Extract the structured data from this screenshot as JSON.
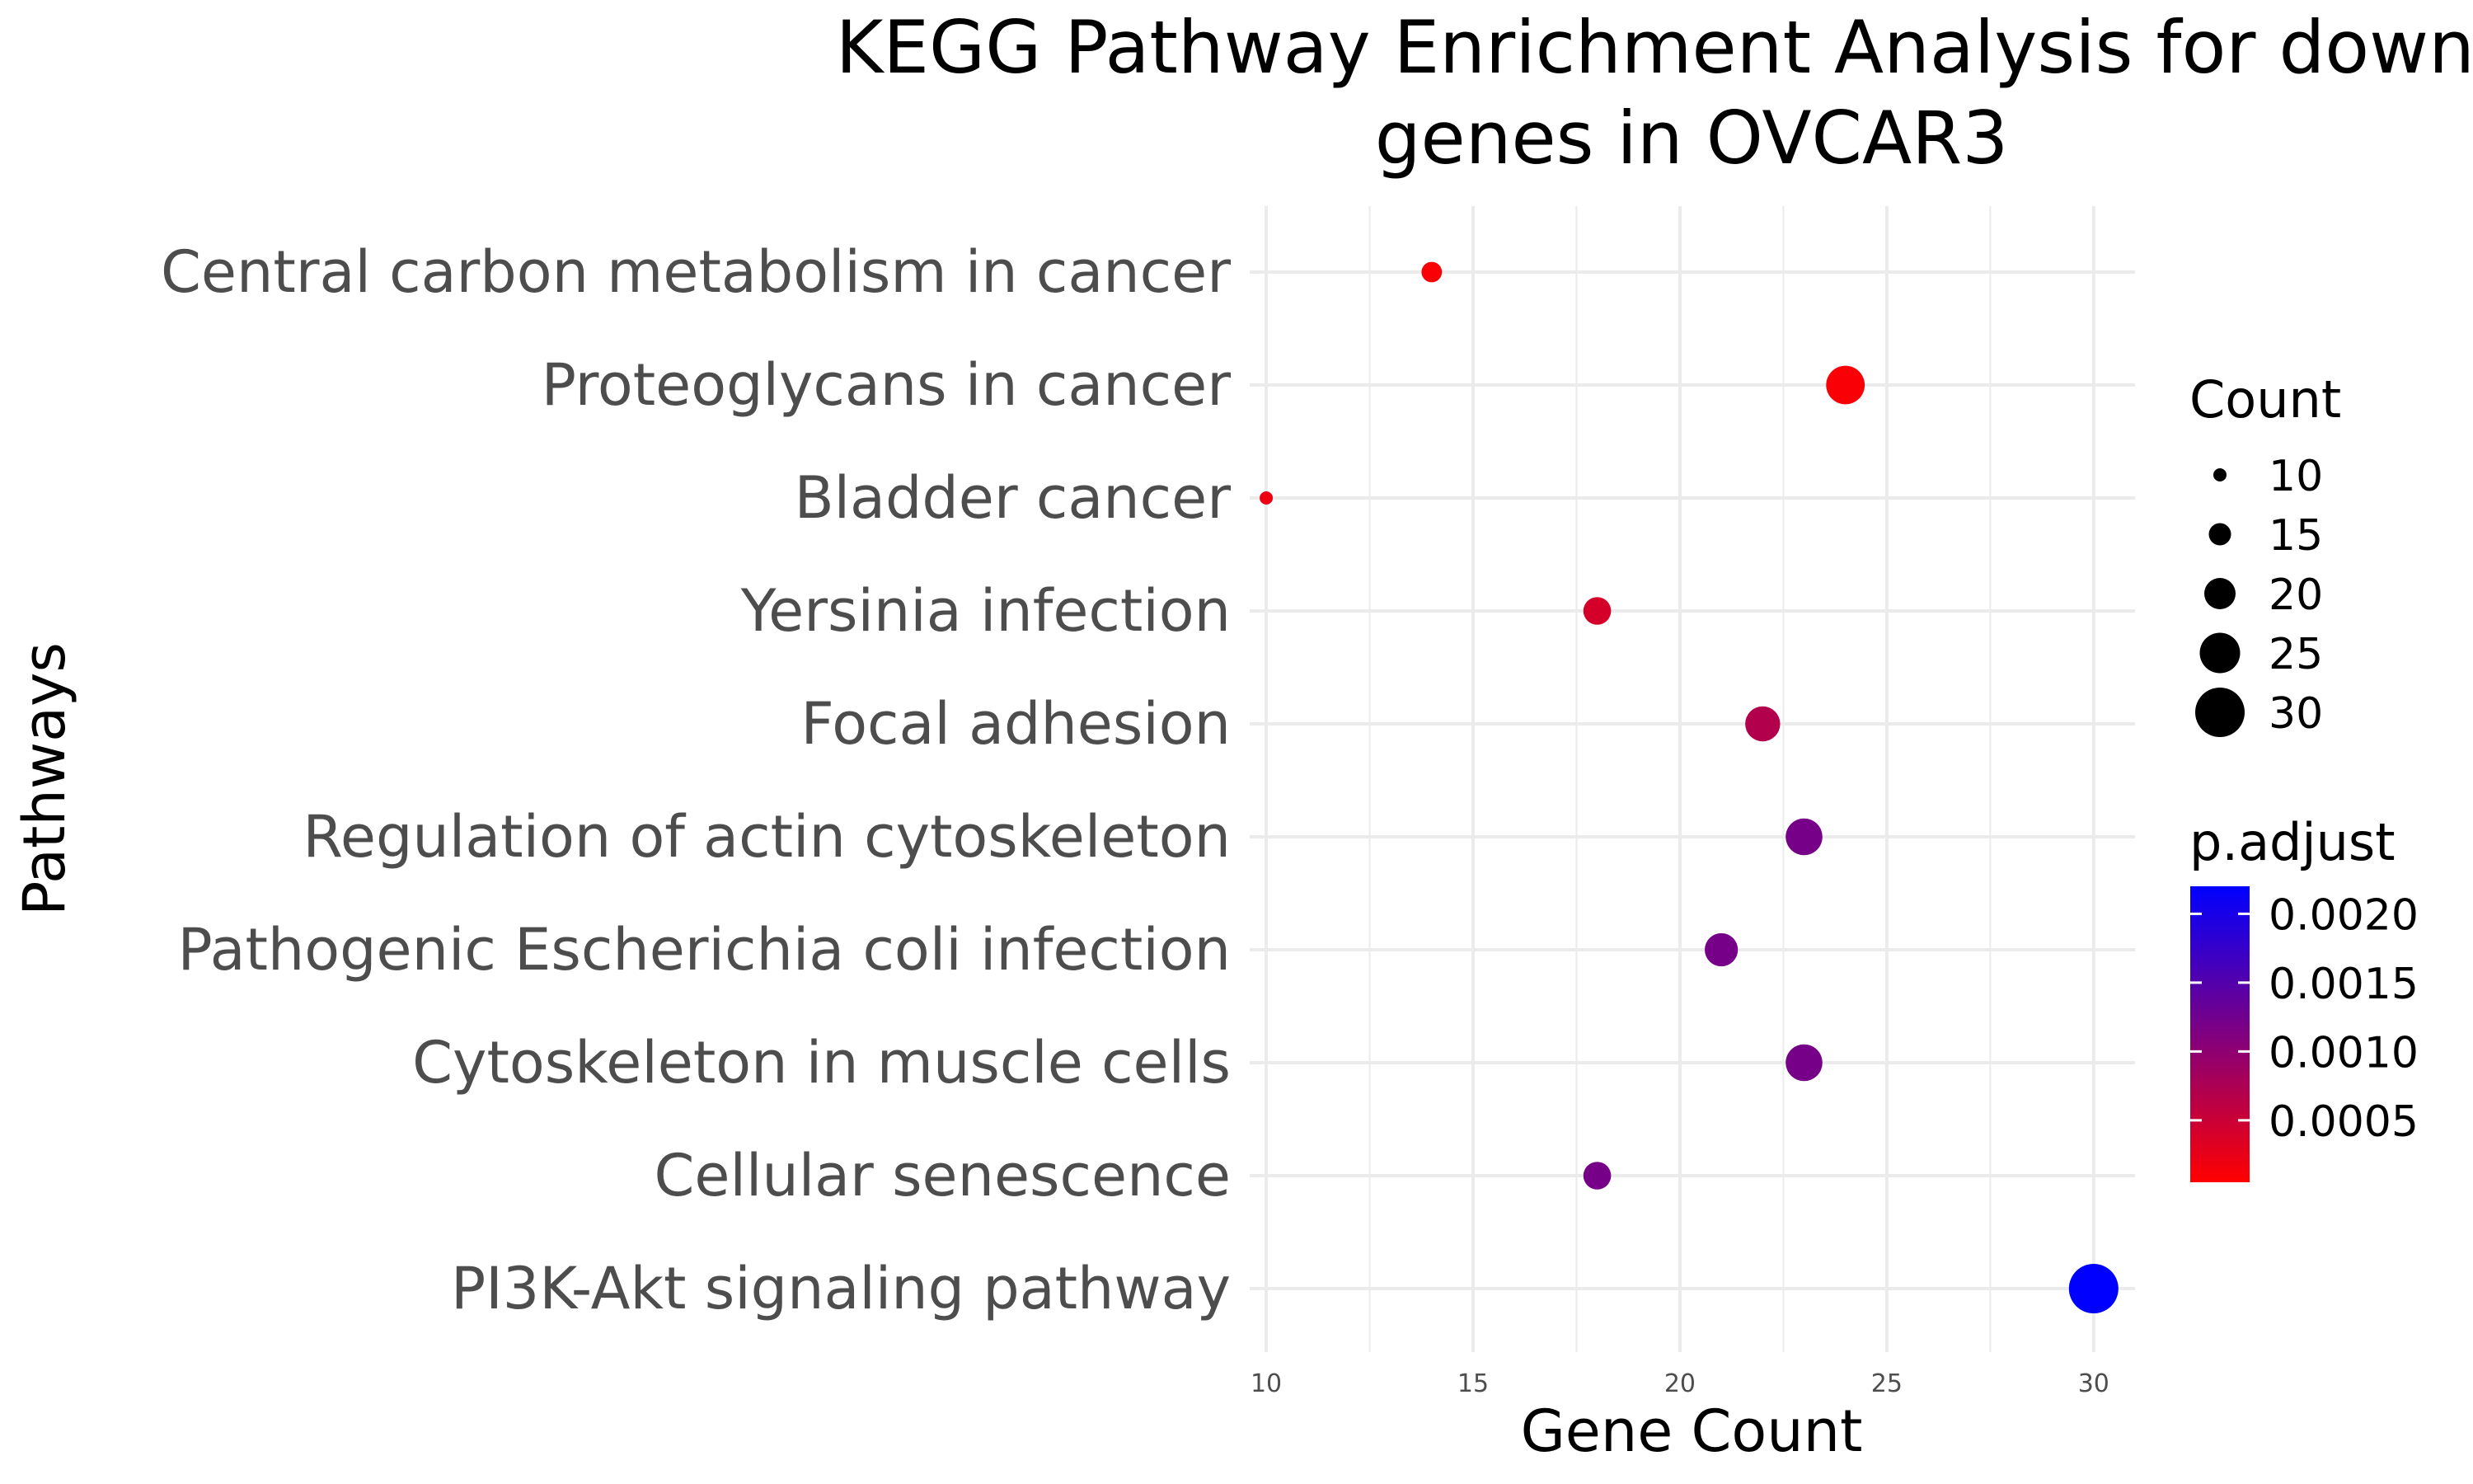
{
  "chart_data": {
    "type": "scatter",
    "title_line1": "KEGG Pathway Enrichment Analysis for downre",
    "title_line2": "genes in OVCAR3",
    "xlabel": "Gene Count",
    "ylabel": "Pathways",
    "xlim": [
      9.6,
      31
    ],
    "x_ticks": [
      10,
      15,
      20,
      25,
      30
    ],
    "grid": true,
    "categories": [
      "Central carbon metabolism in cancer",
      "Proteoglycans in cancer",
      "Bladder cancer",
      "Yersinia infection",
      "Focal adhesion",
      "Regulation of actin cytoskeleton",
      "Pathogenic Escherichia coli infection",
      "Cytoskeleton in muscle cells",
      "Cellular senescence",
      "PI3K-Akt signaling pathway"
    ],
    "points": [
      {
        "pathway": "Central carbon metabolism in cancer",
        "count": 14,
        "p_adjust": 0.0001
      },
      {
        "pathway": "Proteoglycans in cancer",
        "count": 24,
        "p_adjust": 0.0001
      },
      {
        "pathway": "Bladder cancer",
        "count": 10,
        "p_adjust": 0.0002
      },
      {
        "pathway": "Yersinia infection",
        "count": 18,
        "p_adjust": 0.0004
      },
      {
        "pathway": "Focal adhesion",
        "count": 22,
        "p_adjust": 0.0007
      },
      {
        "pathway": "Regulation of actin cytoskeleton",
        "count": 23,
        "p_adjust": 0.0012
      },
      {
        "pathway": "Pathogenic Escherichia coli infection",
        "count": 21,
        "p_adjust": 0.0012
      },
      {
        "pathway": "Cytoskeleton in muscle cells",
        "count": 23,
        "p_adjust": 0.0012
      },
      {
        "pathway": "Cellular senescence",
        "count": 18,
        "p_adjust": 0.0012
      },
      {
        "pathway": "PI3K-Akt signaling pathway",
        "count": 30,
        "p_adjust": 0.0022
      }
    ],
    "size_legend": {
      "title": "Count",
      "values": [
        10,
        15,
        20,
        25,
        30
      ],
      "labels": [
        "10",
        "15",
        "20",
        "25",
        "30"
      ]
    },
    "color_legend": {
      "title": "p.adjust",
      "min": 5e-05,
      "max": 0.0022,
      "low_color": "#ff0000",
      "high_color": "#0000ff",
      "ticks": [
        0.0005,
        0.001,
        0.0015,
        0.002
      ],
      "tick_labels": [
        "0.0005",
        "0.0010",
        "0.0015",
        "0.0020"
      ]
    }
  }
}
